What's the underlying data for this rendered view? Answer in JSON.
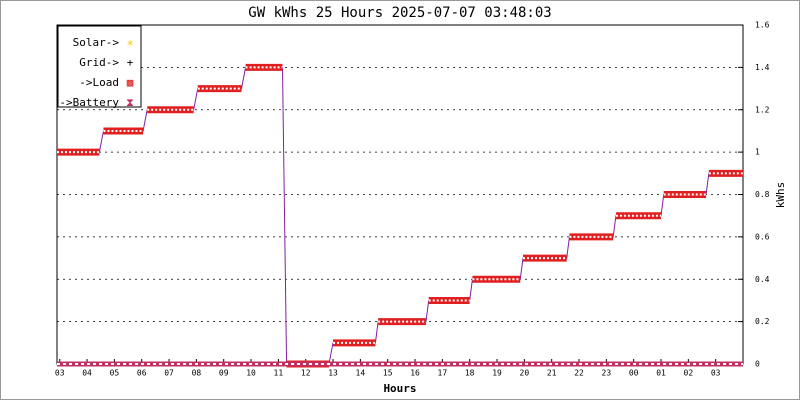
{
  "chart_data": {
    "type": "line",
    "title": "GW kWhs 25 Hours 2025-07-07 03:48:03",
    "xlabel": "Hours",
    "ylabel": "kWhs",
    "xlim": [
      -0.1,
      25
    ],
    "ylim": [
      0,
      1.6
    ],
    "xticks": [
      {
        "value": 0,
        "label": "03"
      },
      {
        "value": 1,
        "label": "04"
      },
      {
        "value": 2,
        "label": "05"
      },
      {
        "value": 3,
        "label": "06"
      },
      {
        "value": 4,
        "label": "07"
      },
      {
        "value": 5,
        "label": "08"
      },
      {
        "value": 6,
        "label": "09"
      },
      {
        "value": 7,
        "label": "10"
      },
      {
        "value": 8,
        "label": "11"
      },
      {
        "value": 9,
        "label": "12"
      },
      {
        "value": 10,
        "label": "13"
      },
      {
        "value": 11,
        "label": "14"
      },
      {
        "value": 12,
        "label": "15"
      },
      {
        "value": 13,
        "label": "16"
      },
      {
        "value": 14,
        "label": "17"
      },
      {
        "value": 15,
        "label": "18"
      },
      {
        "value": 16,
        "label": "19"
      },
      {
        "value": 17,
        "label": "20"
      },
      {
        "value": 18,
        "label": "21"
      },
      {
        "value": 19,
        "label": "22"
      },
      {
        "value": 20,
        "label": "23"
      },
      {
        "value": 21,
        "label": "00"
      },
      {
        "value": 22,
        "label": "01"
      },
      {
        "value": 23,
        "label": "02"
      },
      {
        "value": 24,
        "label": "03"
      }
    ],
    "yticks": [
      0,
      0.2,
      0.4,
      0.6,
      0.8,
      1,
      1.2,
      1.4,
      1.6
    ],
    "grid": true,
    "legend": "upper left",
    "series": [
      {
        "name": "Solar->",
        "color": "#f0c000",
        "symbol": "✳",
        "x": [],
        "values": []
      },
      {
        "name": "Grid->",
        "color": "#000000",
        "symbol": "+",
        "x": [],
        "values": []
      },
      {
        "name": "->Load",
        "color": "#e02020",
        "symbol": "▩",
        "x": [
          -0.1,
          1.45,
          1.6,
          3.05,
          3.2,
          4.9,
          5.05,
          6.65,
          6.8,
          8.15,
          8.3,
          9.85,
          10.0,
          11.55,
          11.65,
          13.4,
          13.5,
          15.0,
          15.1,
          16.85,
          16.95,
          18.55,
          18.65,
          20.25,
          20.35,
          22.0,
          22.1,
          23.65,
          23.75,
          25
        ],
        "values": [
          1.0,
          1.0,
          1.1,
          1.1,
          1.2,
          1.2,
          1.3,
          1.3,
          1.4,
          1.4,
          0,
          0,
          0.1,
          0.1,
          0.2,
          0.2,
          0.3,
          0.3,
          0.4,
          0.4,
          0.5,
          0.5,
          0.6,
          0.6,
          0.7,
          0.7,
          0.8,
          0.8,
          0.9,
          0.9
        ]
      },
      {
        "name": "->Battery",
        "color": "#c03060",
        "symbol": "⧗",
        "x": [
          -0.1,
          25
        ],
        "values": [
          0,
          0
        ]
      }
    ]
  }
}
